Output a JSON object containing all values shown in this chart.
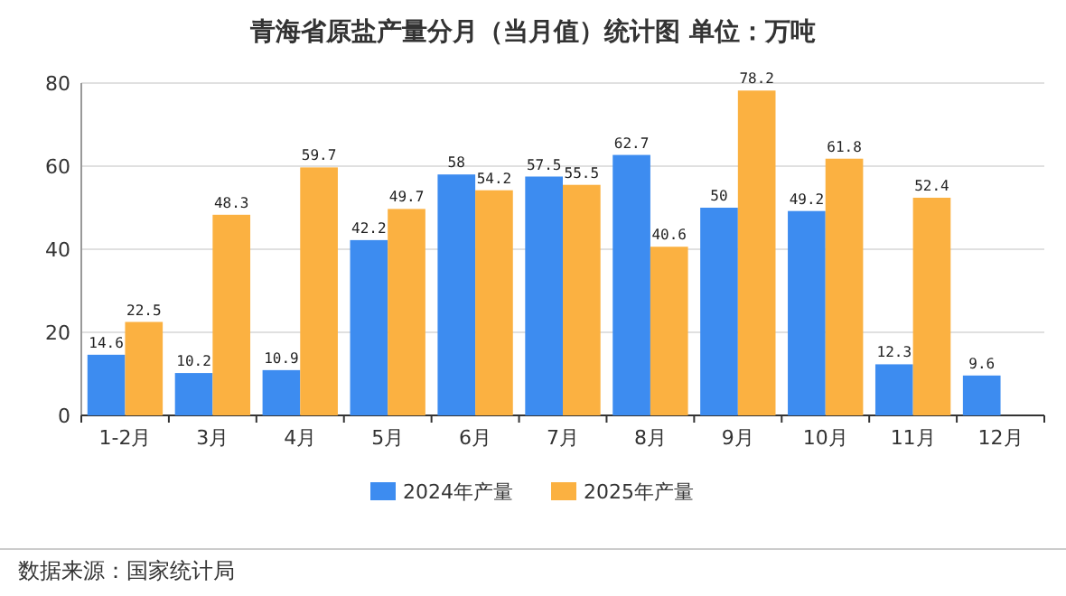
{
  "chart_data": {
    "type": "bar",
    "title": "青海省原盐产量分月（当月值）统计图  单位：万吨",
    "categories": [
      "1-2月",
      "3月",
      "4月",
      "5月",
      "6月",
      "7月",
      "8月",
      "9月",
      "10月",
      "11月",
      "12月"
    ],
    "series": [
      {
        "name": "2024年产量",
        "color": "#3d8cf0",
        "values": [
          14.6,
          10.2,
          10.9,
          42.2,
          58,
          57.5,
          62.7,
          50,
          49.2,
          12.3,
          9.6
        ]
      },
      {
        "name": "2025年产量",
        "color": "#fbb141",
        "values": [
          22.5,
          48.3,
          59.7,
          49.7,
          54.2,
          55.5,
          40.6,
          78.2,
          61.8,
          52.4,
          null
        ]
      }
    ],
    "ylim": [
      0,
      80
    ],
    "yticks": [
      0,
      20,
      40,
      60,
      80
    ],
    "grid": "y",
    "legend": "bottom",
    "data_labels": true,
    "annotations": [
      "数据来源：国家统计局"
    ]
  }
}
